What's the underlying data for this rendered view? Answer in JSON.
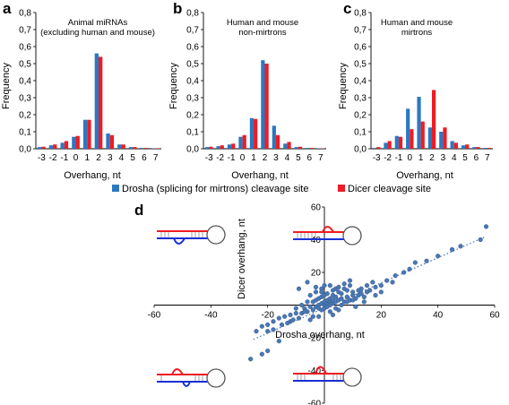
{
  "legend": {
    "drosha": "Drosha (splicing for mirtrons) cleavage site",
    "dicer": "Dicer cleavage site"
  },
  "colors": {
    "drosha": "#2b78c2",
    "dicer": "#ee1c24",
    "scatter": "#4a78b4",
    "hairpin_red": "#ee1c24",
    "hairpin_blue": "#1a2fd6"
  },
  "chart_data": [
    {
      "panel": "a",
      "type": "bar",
      "title": [
        "Animal miRNAs",
        "(excluding human and mouse)"
      ],
      "xlabel": "Overhang, nt",
      "ylabel": "Frequency",
      "ylim": [
        0,
        0.8
      ],
      "yticks": [
        "0,0",
        "0,1",
        "0,2",
        "0,3",
        "0,4",
        "0,5",
        "0,6",
        "0,7",
        "0,8"
      ],
      "categories": [
        "-3",
        "-2",
        "-1",
        "0",
        "1",
        "2",
        "3",
        "4",
        "5",
        "6",
        "7"
      ],
      "series": [
        {
          "name": "Drosha (splicing for mirtrons) cleavage site",
          "values": [
            0.01,
            0.02,
            0.035,
            0.07,
            0.17,
            0.56,
            0.09,
            0.025,
            0.01,
            0.005,
            0.002
          ]
        },
        {
          "name": "Dicer cleavage site",
          "values": [
            0.012,
            0.025,
            0.045,
            0.075,
            0.17,
            0.54,
            0.08,
            0.025,
            0.01,
            0.005,
            0.002
          ]
        }
      ]
    },
    {
      "panel": "b",
      "type": "bar",
      "title": [
        "Human and mouse",
        "non-mirtrons"
      ],
      "xlabel": "Overhang, nt",
      "ylabel": "Frequency",
      "ylim": [
        0,
        0.8
      ],
      "yticks": [
        "0,0",
        "0,1",
        "0,2",
        "0,3",
        "0,4",
        "0,5",
        "0,6",
        "0,7",
        "0,8"
      ],
      "categories": [
        "-3",
        "-2",
        "-1",
        "0",
        "1",
        "2",
        "3",
        "4",
        "5",
        "6",
        "7"
      ],
      "series": [
        {
          "name": "Drosha (splicing for mirtrons) cleavage site",
          "values": [
            0.01,
            0.015,
            0.025,
            0.07,
            0.18,
            0.52,
            0.135,
            0.03,
            0.01,
            0.005,
            0.002
          ]
        },
        {
          "name": "Dicer cleavage site",
          "values": [
            0.012,
            0.02,
            0.03,
            0.08,
            0.175,
            0.5,
            0.08,
            0.04,
            0.012,
            0.005,
            0.002
          ]
        }
      ]
    },
    {
      "panel": "c",
      "type": "bar",
      "title": [
        "Human and mouse",
        "mirtrons"
      ],
      "xlabel": "Overhang, nt",
      "ylabel": "Frequency",
      "ylim": [
        0,
        0.8
      ],
      "yticks": [
        "0,0",
        "0,1",
        "0,2",
        "0,3",
        "0,4",
        "0,5",
        "0,6",
        "0,7",
        "0,8"
      ],
      "categories": [
        "-3",
        "-2",
        "-1",
        "0",
        "1",
        "2",
        "3",
        "4",
        "5",
        "6",
        "7"
      ],
      "series": [
        {
          "name": "Drosha (splicing for mirtrons) cleavage site",
          "values": [
            0.005,
            0.035,
            0.075,
            0.235,
            0.305,
            0.125,
            0.1,
            0.045,
            0.02,
            0.01,
            0.005
          ]
        },
        {
          "name": "Dicer cleavage site",
          "values": [
            0.01,
            0.045,
            0.07,
            0.115,
            0.16,
            0.345,
            0.125,
            0.035,
            0.025,
            0.01,
            0.005
          ]
        }
      ]
    },
    {
      "panel": "d",
      "type": "scatter",
      "xlabel": "Drosha overhang, nt",
      "ylabel": "Dicer overhang, nt",
      "xlim": [
        -60,
        60
      ],
      "ylim": [
        -60,
        60
      ],
      "xticks": [
        "-60",
        "-40",
        "-20",
        "20",
        "40",
        "60"
      ],
      "yticks": [
        "-60",
        "-40",
        "-20",
        "20",
        "40",
        "60"
      ],
      "trendline": {
        "style": "dotted",
        "from": [
          -25,
          -21
        ],
        "to": [
          57,
          42
        ]
      },
      "points": [
        [
          -24,
          -16
        ],
        [
          -22,
          -13
        ],
        [
          -20,
          -12
        ],
        [
          -18,
          -10
        ],
        [
          -16,
          -8
        ],
        [
          -14,
          -7
        ],
        [
          -12,
          -6
        ],
        [
          -10,
          -5
        ],
        [
          -8,
          -5
        ],
        [
          -7,
          -2
        ],
        [
          -6,
          -4
        ],
        [
          -5,
          -1
        ],
        [
          -4,
          -3
        ],
        [
          -4,
          2
        ],
        [
          -3,
          -1
        ],
        [
          -3,
          3
        ],
        [
          -2,
          0
        ],
        [
          -2,
          4
        ],
        [
          -2,
          -2
        ],
        [
          -1,
          1
        ],
        [
          -1,
          -3
        ],
        [
          -1,
          5
        ],
        [
          0,
          0
        ],
        [
          0,
          2
        ],
        [
          0,
          -2
        ],
        [
          0,
          6
        ],
        [
          1,
          1
        ],
        [
          1,
          3
        ],
        [
          1,
          -1
        ],
        [
          2,
          2
        ],
        [
          2,
          0
        ],
        [
          2,
          4
        ],
        [
          2,
          -4
        ],
        [
          3,
          1
        ],
        [
          3,
          3
        ],
        [
          3,
          6
        ],
        [
          4,
          2
        ],
        [
          4,
          5
        ],
        [
          4,
          -2
        ],
        [
          5,
          3
        ],
        [
          5,
          8
        ],
        [
          6,
          4
        ],
        [
          6,
          7
        ],
        [
          7,
          2
        ],
        [
          7,
          10
        ],
        [
          8,
          5
        ],
        [
          8,
          9
        ],
        [
          9,
          3
        ],
        [
          9,
          12
        ],
        [
          10,
          6
        ],
        [
          10,
          8
        ],
        [
          11,
          4
        ],
        [
          12,
          9
        ],
        [
          12,
          6
        ],
        [
          13,
          10
        ],
        [
          14,
          5
        ],
        [
          15,
          12
        ],
        [
          16,
          9
        ],
        [
          17,
          14
        ],
        [
          18,
          11
        ],
        [
          20,
          12
        ],
        [
          22,
          15
        ],
        [
          25,
          18
        ],
        [
          28,
          20
        ],
        [
          32,
          26
        ],
        [
          36,
          27
        ],
        [
          40,
          30
        ],
        [
          45,
          34
        ],
        [
          48,
          36
        ],
        [
          55,
          40
        ],
        [
          57,
          48
        ],
        [
          -3,
          8
        ],
        [
          -5,
          6
        ],
        [
          -6,
          2
        ],
        [
          -8,
          0
        ],
        [
          -10,
          -2
        ],
        [
          -12,
          -10
        ],
        [
          -15,
          -12
        ],
        [
          -5,
          -9
        ],
        [
          -2,
          -7
        ],
        [
          3,
          -6
        ],
        [
          5,
          -3
        ],
        [
          6,
          0
        ],
        [
          8,
          2
        ],
        [
          10,
          3
        ],
        [
          13,
          7
        ],
        [
          15,
          8
        ],
        [
          -1,
          10
        ],
        [
          2,
          12
        ],
        [
          4,
          10
        ],
        [
          -4,
          -7
        ],
        [
          -9,
          -8
        ],
        [
          -7,
          -4
        ],
        [
          -11,
          -9
        ],
        [
          -13,
          -11
        ],
        [
          -18,
          -15
        ],
        [
          -20,
          -16
        ],
        [
          -26,
          -33
        ],
        [
          -20,
          -28
        ],
        [
          -16,
          -22
        ],
        [
          -22,
          -30
        ],
        [
          -6,
          14
        ],
        [
          -9,
          10
        ],
        [
          0,
          12
        ],
        [
          -3,
          11
        ],
        [
          11,
          -1
        ],
        [
          14,
          2
        ],
        [
          18,
          6
        ],
        [
          20,
          8
        ],
        [
          1,
          7
        ],
        [
          -1,
          8
        ],
        [
          3,
          9
        ],
        [
          5,
          11
        ],
        [
          7,
          13
        ],
        [
          9,
          15
        ],
        [
          24,
          14
        ],
        [
          30,
          22
        ]
      ]
    }
  ]
}
